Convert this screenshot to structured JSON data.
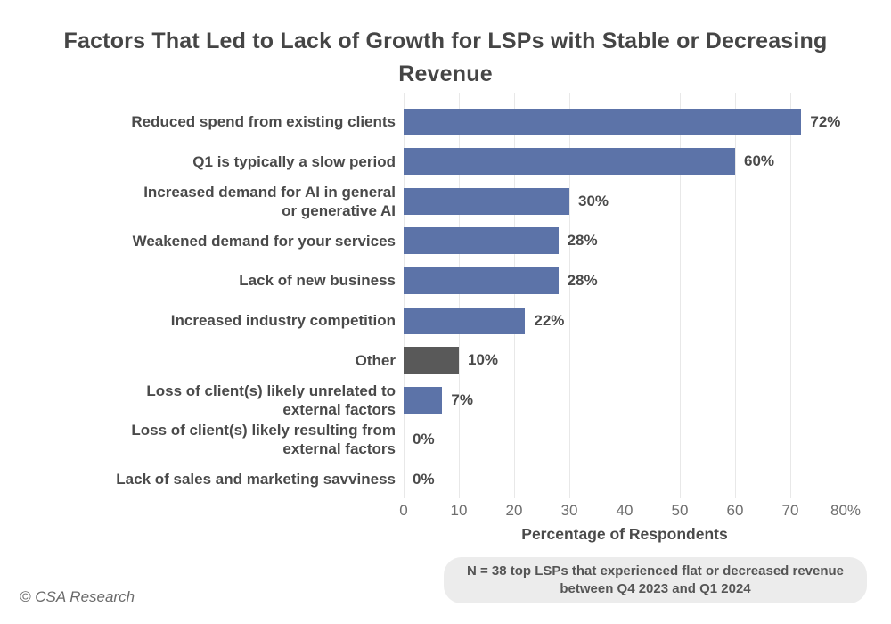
{
  "title": "Factors That Led to Lack of Growth for LSPs with Stable or Decreasing Revenue",
  "chart_data": {
    "type": "bar",
    "orientation": "horizontal",
    "title": "Factors That Led to Lack of Growth for LSPs with Stable or Decreasing Revenue",
    "categories": [
      "Reduced spend from existing clients",
      "Q1 is typically a slow period",
      "Increased demand for AI in general\nor generative AI",
      "Weakened demand for your services",
      "Lack of new business",
      "Increased industry competition",
      "Other",
      "Loss of client(s) likely unrelated to\nexternal factors",
      "Loss of client(s) likely resulting from\nexternal factors",
      "Lack of sales and marketing savviness"
    ],
    "values": [
      72,
      60,
      30,
      28,
      28,
      22,
      10,
      7,
      0,
      0
    ],
    "value_labels": [
      "72%",
      "60%",
      "30%",
      "28%",
      "28%",
      "22%",
      "10%",
      "7%",
      "0%",
      "0%"
    ],
    "bar_colors": [
      "#5C73A8",
      "#5C73A8",
      "#5C73A8",
      "#5C73A8",
      "#5C73A8",
      "#5C73A8",
      "#595959",
      "#5C73A8",
      "#5C73A8",
      "#5C73A8"
    ],
    "xlabel": "Percentage of Respondents",
    "xlim": [
      0,
      80
    ],
    "xticks": [
      0,
      10,
      20,
      30,
      40,
      50,
      60,
      70,
      80
    ],
    "xtick_labels": [
      "0",
      "10",
      "20",
      "30",
      "40",
      "50",
      "60",
      "70",
      "80%"
    ],
    "grid": "vertical-light",
    "legend": "none"
  },
  "note": "N = 38 top LSPs that experienced flat or decreased revenue between Q4 2023 and Q1 2024",
  "footer": "© CSA Research",
  "colors": {
    "bar_blue": "#5C73A8",
    "bar_gray": "#595959",
    "gridline": "#e8e8e8",
    "title_text": "#454545",
    "label_text": "#4a4a4a",
    "tick_text": "#6e6e6e",
    "note_bg": "#ececec",
    "note_text": "#555555",
    "footer_text": "#6b6b6b"
  }
}
